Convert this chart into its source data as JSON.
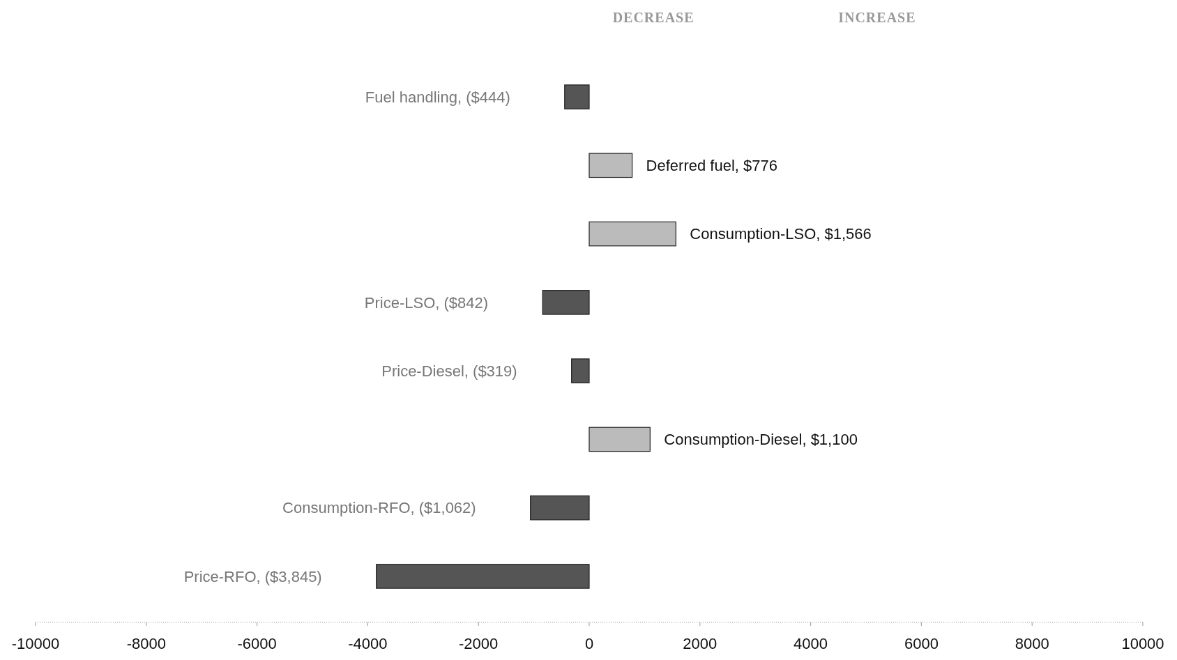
{
  "chart_data": {
    "type": "bar",
    "orientation": "horizontal",
    "categories": [
      "Fuel handling, ($444)",
      "Deferred fuel, $776",
      "Consumption-LSO, $1,566",
      "Price-LSO, ($842)",
      "Price-Diesel, ($319)",
      "Consumption-Diesel, $1,100",
      "Consumption-RFO, ($1,062)",
      "Price-RFO, ($3,845)"
    ],
    "values": [
      -444,
      776,
      1566,
      -842,
      -319,
      1100,
      -1062,
      -3845
    ],
    "colors": [
      "#555555",
      "#bbbbbb",
      "#bbbbbb",
      "#555555",
      "#555555",
      "#bbbbbb",
      "#555555",
      "#555555"
    ],
    "xlim": [
      -10000,
      10000
    ],
    "xticks": [
      -10000,
      -8000,
      -6000,
      -4000,
      -2000,
      0,
      2000,
      4000,
      6000,
      8000,
      10000
    ],
    "annotations": [
      "DECREASE",
      "INCREASE"
    ],
    "grid": false
  }
}
